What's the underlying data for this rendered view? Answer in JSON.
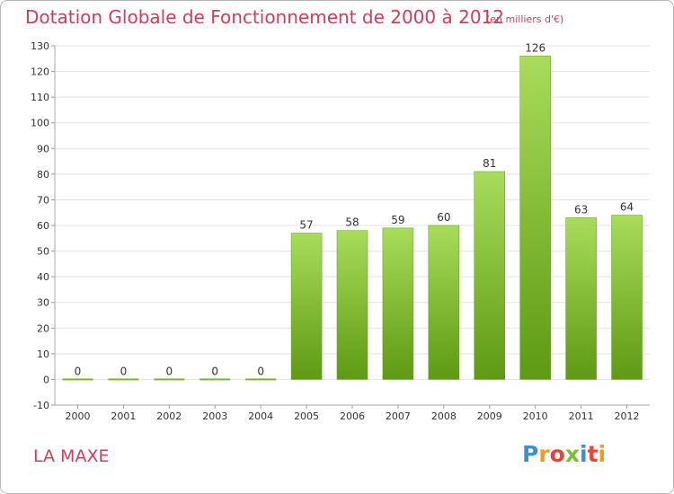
{
  "title": "Dotation Globale de Fonctionnement de 2000 à 2012",
  "subtitle": "(en milliers d'€)",
  "commune": "LA MAXE",
  "logo": {
    "text": "Proxiti",
    "letters": [
      "P",
      "r",
      "o",
      "x",
      "i",
      "t",
      "i"
    ],
    "colors": [
      "#3d8fd1",
      "#f39b1b",
      "#e8423a",
      "#7cbf2d",
      "#3d8fd1",
      "#e8423a",
      "#f39b1b"
    ]
  },
  "colors": {
    "title": "#d43d5a",
    "bar_top": "#a8dc5a",
    "bar_bottom": "#5e9a14",
    "grid": "#e3e3e3",
    "axis_text": "#333333"
  },
  "chart_data": {
    "type": "bar",
    "categories": [
      "2000",
      "2001",
      "2002",
      "2003",
      "2004",
      "2005",
      "2006",
      "2007",
      "2008",
      "2009",
      "2010",
      "2011",
      "2012"
    ],
    "values": [
      0,
      0,
      0,
      0,
      0,
      57,
      58,
      59,
      60,
      81,
      126,
      63,
      64
    ],
    "data_labels": [
      "0",
      "0",
      "0",
      "0",
      "0",
      "57",
      "58",
      "59",
      "60",
      "81",
      "126",
      "63",
      "64"
    ],
    "ylim": [
      -10,
      130
    ],
    "yticks": [
      -10,
      0,
      10,
      20,
      30,
      40,
      50,
      60,
      70,
      80,
      90,
      100,
      110,
      120,
      130
    ],
    "xlabel": "",
    "ylabel": "",
    "grid": true,
    "legend": "none"
  }
}
